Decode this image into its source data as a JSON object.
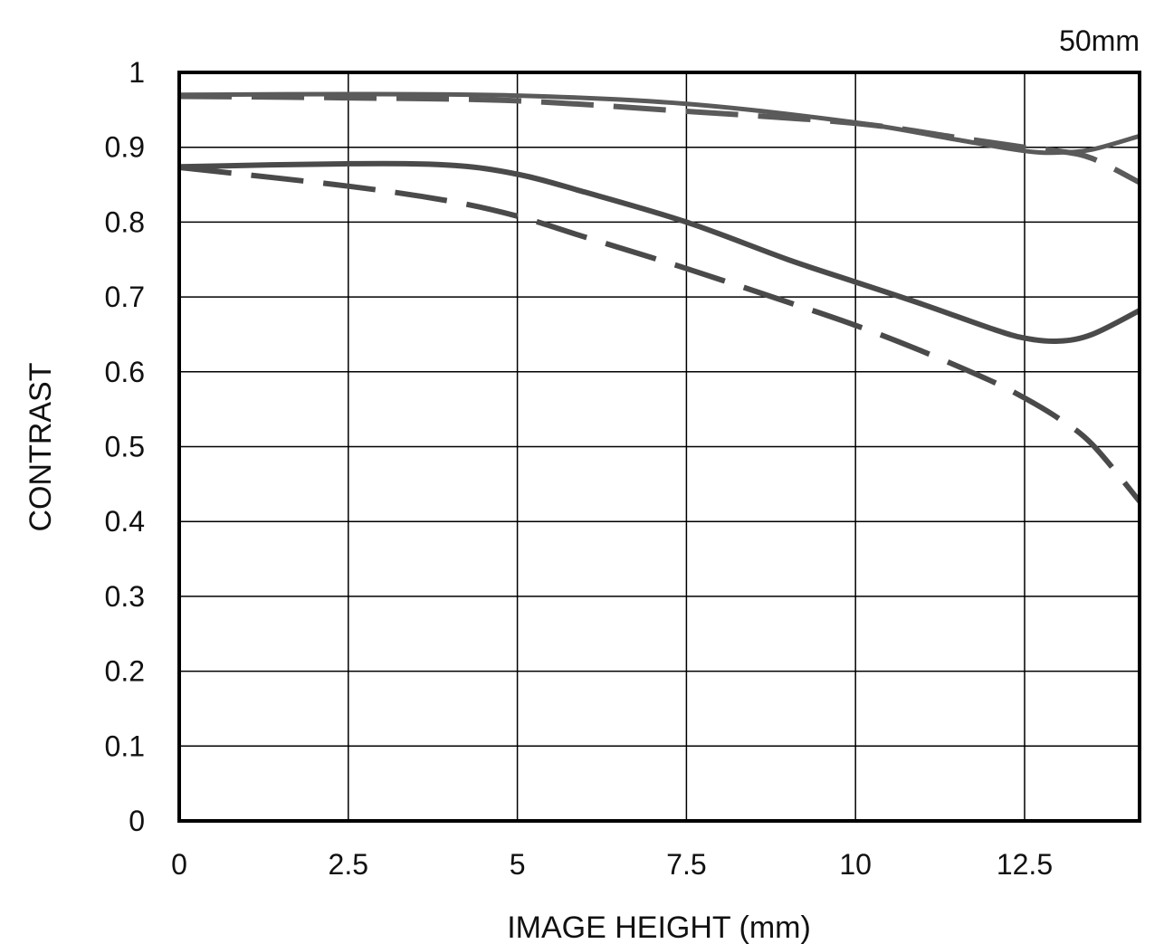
{
  "chart_data": {
    "type": "line",
    "title": "",
    "corner_label": "50mm",
    "xlabel": "IMAGE HEIGHT (mm)",
    "ylabel": "CONTRAST",
    "xlim": [
      0,
      14.2
    ],
    "ylim": [
      0,
      1
    ],
    "x_ticks": [
      0,
      2.5,
      5,
      7.5,
      10,
      12.5
    ],
    "x_tick_labels": [
      "0",
      "2.5",
      "5",
      "7.5",
      "10",
      "12.5"
    ],
    "y_ticks": [
      0,
      0.1,
      0.2,
      0.3,
      0.4,
      0.5,
      0.6,
      0.7,
      0.8,
      0.9,
      1
    ],
    "y_tick_labels": [
      "0",
      "0.1",
      "0.2",
      "0.3",
      "0.4",
      "0.5",
      "0.6",
      "0.7",
      "0.8",
      "0.9",
      "1"
    ],
    "grid": true,
    "legend": "none",
    "series": [
      {
        "style": "solid",
        "color": "#5a5a5a",
        "width": 5,
        "points": [
          [
            0,
            0.97
          ],
          [
            2.5,
            0.971
          ],
          [
            5,
            0.969
          ],
          [
            7.5,
            0.958
          ],
          [
            10,
            0.933
          ],
          [
            11.5,
            0.91
          ],
          [
            12.5,
            0.895
          ],
          [
            13,
            0.893
          ],
          [
            13.5,
            0.897
          ],
          [
            14.2,
            0.915
          ]
        ]
      },
      {
        "style": "dashed",
        "color": "#5a5a5a",
        "width": 6,
        "points": [
          [
            0,
            0.968
          ],
          [
            2.5,
            0.966
          ],
          [
            5,
            0.962
          ],
          [
            7.5,
            0.948
          ],
          [
            10,
            0.932
          ],
          [
            11.5,
            0.913
          ],
          [
            12.5,
            0.9
          ],
          [
            13,
            0.895
          ],
          [
            13.5,
            0.885
          ],
          [
            14.2,
            0.853
          ]
        ]
      },
      {
        "style": "solid",
        "color": "#4a4a4a",
        "width": 6,
        "points": [
          [
            0,
            0.874
          ],
          [
            2.5,
            0.878
          ],
          [
            4,
            0.876
          ],
          [
            5,
            0.864
          ],
          [
            6,
            0.84
          ],
          [
            7.5,
            0.8
          ],
          [
            9,
            0.75
          ],
          [
            10,
            0.72
          ],
          [
            11,
            0.69
          ],
          [
            12,
            0.658
          ],
          [
            12.5,
            0.645
          ],
          [
            13,
            0.641
          ],
          [
            13.5,
            0.65
          ],
          [
            14.2,
            0.682
          ]
        ]
      },
      {
        "style": "dashed",
        "color": "#4a4a4a",
        "width": 6,
        "points": [
          [
            0,
            0.873
          ],
          [
            2.5,
            0.848
          ],
          [
            4,
            0.828
          ],
          [
            5,
            0.808
          ],
          [
            6,
            0.78
          ],
          [
            7.5,
            0.738
          ],
          [
            9,
            0.693
          ],
          [
            10,
            0.662
          ],
          [
            11,
            0.627
          ],
          [
            12,
            0.588
          ],
          [
            12.5,
            0.565
          ],
          [
            13,
            0.538
          ],
          [
            13.5,
            0.503
          ],
          [
            14.2,
            0.427
          ]
        ]
      }
    ]
  }
}
